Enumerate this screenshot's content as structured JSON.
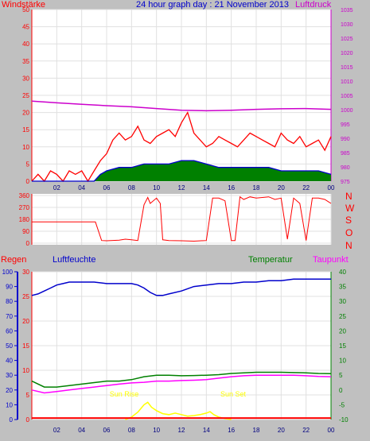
{
  "header": {
    "wind_label": "Windstärke",
    "title": "24 hour graph day : 21 November 2013",
    "pressure_label": "Luftdruck"
  },
  "lower_header": {
    "rain_label": "Regen",
    "humidity_label": "Luftfeuchte",
    "temperature_label": "Temperatur",
    "dewpoint_label": "Taupunkt"
  },
  "colors": {
    "background": "#c0c0c0",
    "plot": "#ffffff",
    "wind_gust": "#ff0000",
    "wind_avg": "#0000cc",
    "wind_fill": "#008000",
    "pressure": "#cc00cc",
    "direction": "#ff0000",
    "humidity": "#0000cc",
    "temperature": "#008000",
    "dewpoint": "#ff00ff",
    "rain": "#ff0000",
    "solar": "#ffff00",
    "sun_label": "#ffff00",
    "grid": "#e0e0e0"
  },
  "x_ticks": [
    "02",
    "04",
    "06",
    "08",
    "10",
    "12",
    "14",
    "16",
    "18",
    "20",
    "22",
    "00"
  ],
  "compass_labels": [
    "N",
    "W",
    "S",
    "O",
    "N"
  ],
  "sun_rise_label": "Sun Rise",
  "sun_set_label": "Sun Set",
  "chart_data": [
    {
      "type": "line",
      "panel": "wind_pressure",
      "x_range_hours": [
        0,
        24
      ],
      "y_left": {
        "label": "Windstärke",
        "range": [
          0,
          50
        ],
        "ticks": [
          0,
          5,
          10,
          15,
          20,
          25,
          30,
          35,
          40,
          45,
          50
        ]
      },
      "y_right": {
        "label": "Luftdruck",
        "range": [
          975,
          1035
        ],
        "ticks": [
          975,
          980,
          985,
          990,
          995,
          1000,
          1005,
          1010,
          1015,
          1020,
          1025,
          1030,
          1035
        ]
      },
      "series": [
        {
          "name": "Windstärke",
          "axis": "left",
          "x": [
            0,
            0.5,
            1,
            1.5,
            2,
            2.5,
            3,
            3.5,
            4,
            4.5,
            5,
            5.5,
            6,
            6.5,
            7,
            7.5,
            8,
            8.5,
            9,
            9.5,
            10,
            10.5,
            11,
            11.5,
            12,
            12.5,
            13,
            13.5,
            14,
            14.5,
            15,
            15.5,
            16,
            16.5,
            17,
            17.5,
            18,
            18.5,
            19,
            19.5,
            20,
            20.5,
            21,
            21.5,
            22,
            22.5,
            23,
            23.5,
            24
          ],
          "y": [
            0,
            2,
            0,
            3,
            2,
            0,
            3,
            2,
            3,
            0,
            3,
            6,
            8,
            12,
            14,
            12,
            13,
            16,
            12,
            11,
            13,
            14,
            15,
            13,
            17,
            20,
            14,
            12,
            10,
            11,
            13,
            12,
            11,
            10,
            12,
            14,
            13,
            12,
            11,
            10,
            14,
            12,
            11,
            13,
            10,
            11,
            12,
            9,
            13
          ]
        },
        {
          "name": "mean",
          "axis": "left",
          "x": [
            0,
            1,
            2,
            3,
            4,
            5,
            5.5,
            6,
            7,
            8,
            9,
            10,
            11,
            12,
            13,
            14,
            15,
            16,
            17,
            18,
            19,
            20,
            21,
            22,
            23,
            24
          ],
          "y": [
            0,
            0,
            0,
            0,
            0,
            0,
            2,
            3,
            4,
            4,
            5,
            5,
            5,
            6,
            6,
            5,
            4,
            4,
            4,
            4,
            4,
            3,
            3,
            3,
            3,
            2
          ]
        },
        {
          "name": "Luftdruck",
          "axis": "right",
          "x": [
            0,
            2,
            4,
            6,
            8,
            10,
            12,
            14,
            16,
            18,
            20,
            22,
            24
          ],
          "y": [
            1003,
            1002.4,
            1001.9,
            1001.4,
            1001,
            1000.4,
            999.8,
            999.6,
            999.8,
            1000.1,
            1000.3,
            1000.4,
            1000.1
          ]
        }
      ]
    },
    {
      "type": "line",
      "panel": "wind_direction",
      "x_range_hours": [
        0,
        24
      ],
      "y_left": {
        "range": [
          0,
          360
        ],
        "ticks": [
          0,
          90,
          180,
          270,
          360
        ]
      },
      "series": [
        {
          "name": "direction",
          "x": [
            0,
            5.1,
            5.6,
            6,
            7,
            7.5,
            8,
            8.5,
            9,
            9.3,
            9.5,
            10,
            10.3,
            10.5,
            11,
            12,
            13,
            14,
            14.5,
            15,
            15.5,
            16,
            16.3,
            16.7,
            17,
            17.5,
            18,
            19,
            19.5,
            20,
            20.5,
            21,
            21.5,
            22,
            22.5,
            23,
            23.5,
            24
          ],
          "y": [
            160,
            160,
            20,
            18,
            22,
            30,
            25,
            20,
            290,
            345,
            300,
            340,
            300,
            25,
            20,
            18,
            15,
            20,
            340,
            340,
            320,
            20,
            20,
            350,
            330,
            350,
            340,
            350,
            330,
            340,
            30,
            340,
            300,
            20,
            340,
            340,
            330,
            300
          ]
        }
      ]
    },
    {
      "type": "line",
      "panel": "rain_humidity_temperature",
      "x_range_hours": [
        0,
        24
      ],
      "y_left": {
        "label": "Regen",
        "range": [
          0,
          30
        ],
        "ticks": [
          0,
          5,
          10,
          15,
          20,
          25,
          30
        ]
      },
      "y_humidity": {
        "label": "Luftfeuchte",
        "range": [
          0,
          100
        ],
        "ticks": [
          0,
          10,
          20,
          30,
          40,
          50,
          60,
          70,
          80,
          90,
          100
        ]
      },
      "y_right": {
        "label": "Temperatur",
        "range": [
          -10,
          40
        ],
        "ticks": [
          -10,
          -5,
          0,
          5,
          10,
          15,
          20,
          25,
          30,
          35,
          40
        ]
      },
      "series": [
        {
          "name": "Luftfeuchte",
          "axis": "humidity",
          "x": [
            0,
            0.5,
            1,
            1.5,
            2,
            2.5,
            3,
            4,
            5,
            6,
            7,
            8,
            8.5,
            9,
            9.5,
            10,
            10.5,
            11,
            12,
            13,
            14,
            15,
            16,
            17,
            18,
            19,
            20,
            21,
            22,
            23,
            24
          ],
          "y": [
            84,
            85,
            87,
            89,
            91,
            92,
            93,
            93,
            93,
            92,
            92,
            92,
            91,
            89,
            86,
            84,
            84,
            85,
            87,
            90,
            91,
            92,
            92,
            93,
            93,
            94,
            94,
            95,
            95,
            95,
            95
          ]
        },
        {
          "name": "Temperatur",
          "axis": "right",
          "x": [
            0,
            1,
            2,
            3,
            4,
            5,
            6,
            7,
            8,
            9,
            10,
            11,
            12,
            13,
            14,
            15,
            16,
            17,
            18,
            19,
            20,
            21,
            22,
            23,
            24
          ],
          "y": [
            3,
            1,
            1,
            1.5,
            2,
            2.5,
            3,
            3,
            3.5,
            4.5,
            5,
            5,
            4.8,
            4.9,
            5,
            5.2,
            5.6,
            5.8,
            6,
            6,
            6,
            5.9,
            5.8,
            5.6,
            5.5
          ]
        },
        {
          "name": "Taupunkt",
          "axis": "right",
          "x": [
            0,
            1,
            2,
            3,
            4,
            5,
            6,
            7,
            8,
            9,
            10,
            11,
            12,
            13,
            14,
            15,
            16,
            17,
            18,
            19,
            20,
            21,
            22,
            23,
            24
          ],
          "y": [
            0,
            -1,
            -0.5,
            0,
            0.5,
            1,
            1.5,
            2,
            2.4,
            2.6,
            3,
            3,
            3.2,
            3.3,
            3.5,
            4,
            4.5,
            4.8,
            5,
            5,
            5,
            5,
            4.8,
            4.6,
            4.5
          ]
        },
        {
          "name": "solar",
          "axis": "left",
          "x": [
            7.5,
            8,
            8.5,
            9,
            9.3,
            9.6,
            10,
            10.5,
            11,
            11.5,
            12,
            12.5,
            13,
            13.5,
            14,
            14.3,
            14.6,
            15,
            15.5,
            16
          ],
          "y": [
            0,
            0.5,
            1.5,
            3,
            3.5,
            2.5,
            1.8,
            1.2,
            1,
            1.3,
            1,
            0.7,
            0.8,
            1,
            1.3,
            1.6,
            1,
            0.5,
            0.2,
            0
          ]
        },
        {
          "name": "Regen",
          "axis": "left",
          "x": [
            0,
            24
          ],
          "y": [
            0.3,
            0.3
          ]
        }
      ]
    }
  ]
}
